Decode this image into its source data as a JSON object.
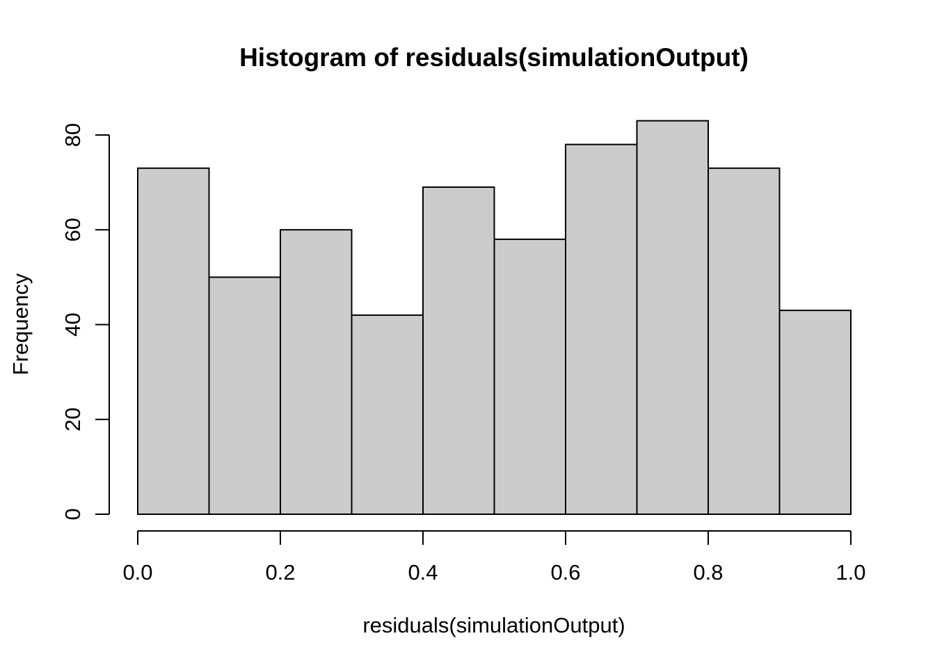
{
  "chart_data": {
    "type": "bar",
    "subtype": "histogram",
    "title": "Histogram of residuals(simulationOutput)",
    "xlabel": "residuals(simulationOutput)",
    "ylabel": "Frequency",
    "categories": [
      "0.0-0.1",
      "0.1-0.2",
      "0.2-0.3",
      "0.3-0.4",
      "0.4-0.5",
      "0.5-0.6",
      "0.6-0.7",
      "0.7-0.8",
      "0.8-0.9",
      "0.9-1.0"
    ],
    "bin_edges": [
      0.0,
      0.1,
      0.2,
      0.3,
      0.4,
      0.5,
      0.6,
      0.7,
      0.8,
      0.9,
      1.0
    ],
    "values": [
      73,
      50,
      60,
      42,
      69,
      58,
      78,
      83,
      73,
      43
    ],
    "xlim": [
      0.0,
      1.0
    ],
    "ylim": [
      0,
      80
    ],
    "x_ticks": [
      {
        "value": 0.0,
        "label": "0.0"
      },
      {
        "value": 0.2,
        "label": "0.2"
      },
      {
        "value": 0.4,
        "label": "0.4"
      },
      {
        "value": 0.6,
        "label": "0.6"
      },
      {
        "value": 0.8,
        "label": "0.8"
      },
      {
        "value": 1.0,
        "label": "1.0"
      }
    ],
    "y_ticks": [
      {
        "value": 0,
        "label": "0"
      },
      {
        "value": 20,
        "label": "20"
      },
      {
        "value": 40,
        "label": "40"
      },
      {
        "value": 60,
        "label": "60"
      },
      {
        "value": 80,
        "label": "80"
      }
    ],
    "grid": false,
    "legend": null,
    "colors": {
      "bar_fill": "#cccccc",
      "bar_stroke": "#000000",
      "axis": "#000000",
      "text": "#000000",
      "background": "#ffffff"
    }
  }
}
